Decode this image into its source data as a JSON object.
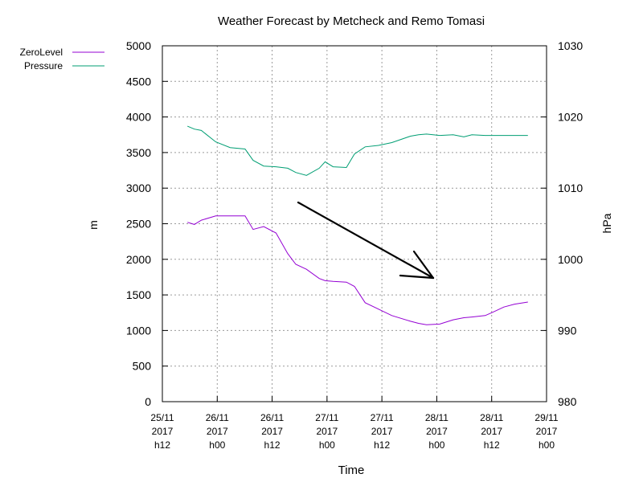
{
  "chart_data": {
    "type": "line",
    "title": "Weather Forecast by Metcheck and Remo Tomasi",
    "xlabel": "Time",
    "ylabel": "m",
    "y2label": "hPa",
    "x_ticks": [
      [
        "25/11",
        "2017",
        "h12"
      ],
      [
        "26/11",
        "2017",
        "h00"
      ],
      [
        "26/11",
        "2017",
        "h12"
      ],
      [
        "27/11",
        "2017",
        "h00"
      ],
      [
        "27/11",
        "2017",
        "h12"
      ],
      [
        "28/11",
        "2017",
        "h00"
      ],
      [
        "28/11",
        "2017",
        "h12"
      ],
      [
        "29/11",
        "2017",
        "h00"
      ]
    ],
    "x_range_hours": [
      0,
      72
    ],
    "ylim": [
      0,
      5000
    ],
    "y_ticks": [
      "0",
      "500",
      "1000",
      "1500",
      "2000",
      "2500",
      "3000",
      "3500",
      "4000",
      "4500",
      "5000"
    ],
    "y2lim": [
      980,
      1030
    ],
    "y2_ticks": [
      "980",
      "990",
      "1000",
      "1010",
      "1020",
      "1030"
    ],
    "grid": true,
    "legend_position": "top-left",
    "series": [
      {
        "name": "ZeroLevel",
        "axis": "left",
        "color": "#9400d3",
        "x": [
          4.7,
          6.0,
          7.3,
          10.0,
          12.7,
          15.5,
          17.0,
          19.0,
          21.3,
          23.5,
          25.0,
          27.0,
          29.4,
          30.5,
          32.0,
          34.5,
          36.0,
          38.0,
          40.5,
          43.0,
          46.5,
          48.0,
          49.5,
          52.0,
          54.5,
          56.5,
          58.0,
          60.5,
          62.0,
          64.0,
          66.0,
          68.5
        ],
        "values": [
          2520,
          2490,
          2550,
          2610,
          2610,
          2610,
          2420,
          2460,
          2370,
          2080,
          1930,
          1860,
          1730,
          1700,
          1690,
          1680,
          1620,
          1390,
          1300,
          1210,
          1130,
          1100,
          1080,
          1090,
          1150,
          1180,
          1190,
          1210,
          1260,
          1330,
          1370,
          1400
        ]
      },
      {
        "name": "Pressure",
        "axis": "right",
        "color": "#009e73",
        "x": [
          4.7,
          6.0,
          7.3,
          10.0,
          12.7,
          15.5,
          17.0,
          19.0,
          21.3,
          23.5,
          25.0,
          27.0,
          29.4,
          30.5,
          32.0,
          34.5,
          36.0,
          38.0,
          40.5,
          43.0,
          46.5,
          48.0,
          49.5,
          52.0,
          54.5,
          56.5,
          58.0,
          60.5,
          62.0,
          64.0,
          66.0,
          68.5
        ],
        "values": [
          1018.7,
          1018.3,
          1018.1,
          1016.5,
          1015.7,
          1015.5,
          1013.9,
          1013.1,
          1013.0,
          1012.8,
          1012.2,
          1011.8,
          1012.8,
          1013.7,
          1013.0,
          1012.9,
          1014.8,
          1015.8,
          1016.0,
          1016.4,
          1017.3,
          1017.5,
          1017.6,
          1017.4,
          1017.5,
          1017.2,
          1017.5,
          1017.4,
          1017.4,
          1017.4,
          1017.4,
          1017.4
        ]
      }
    ],
    "annotation": "downward-trend-arrow"
  }
}
